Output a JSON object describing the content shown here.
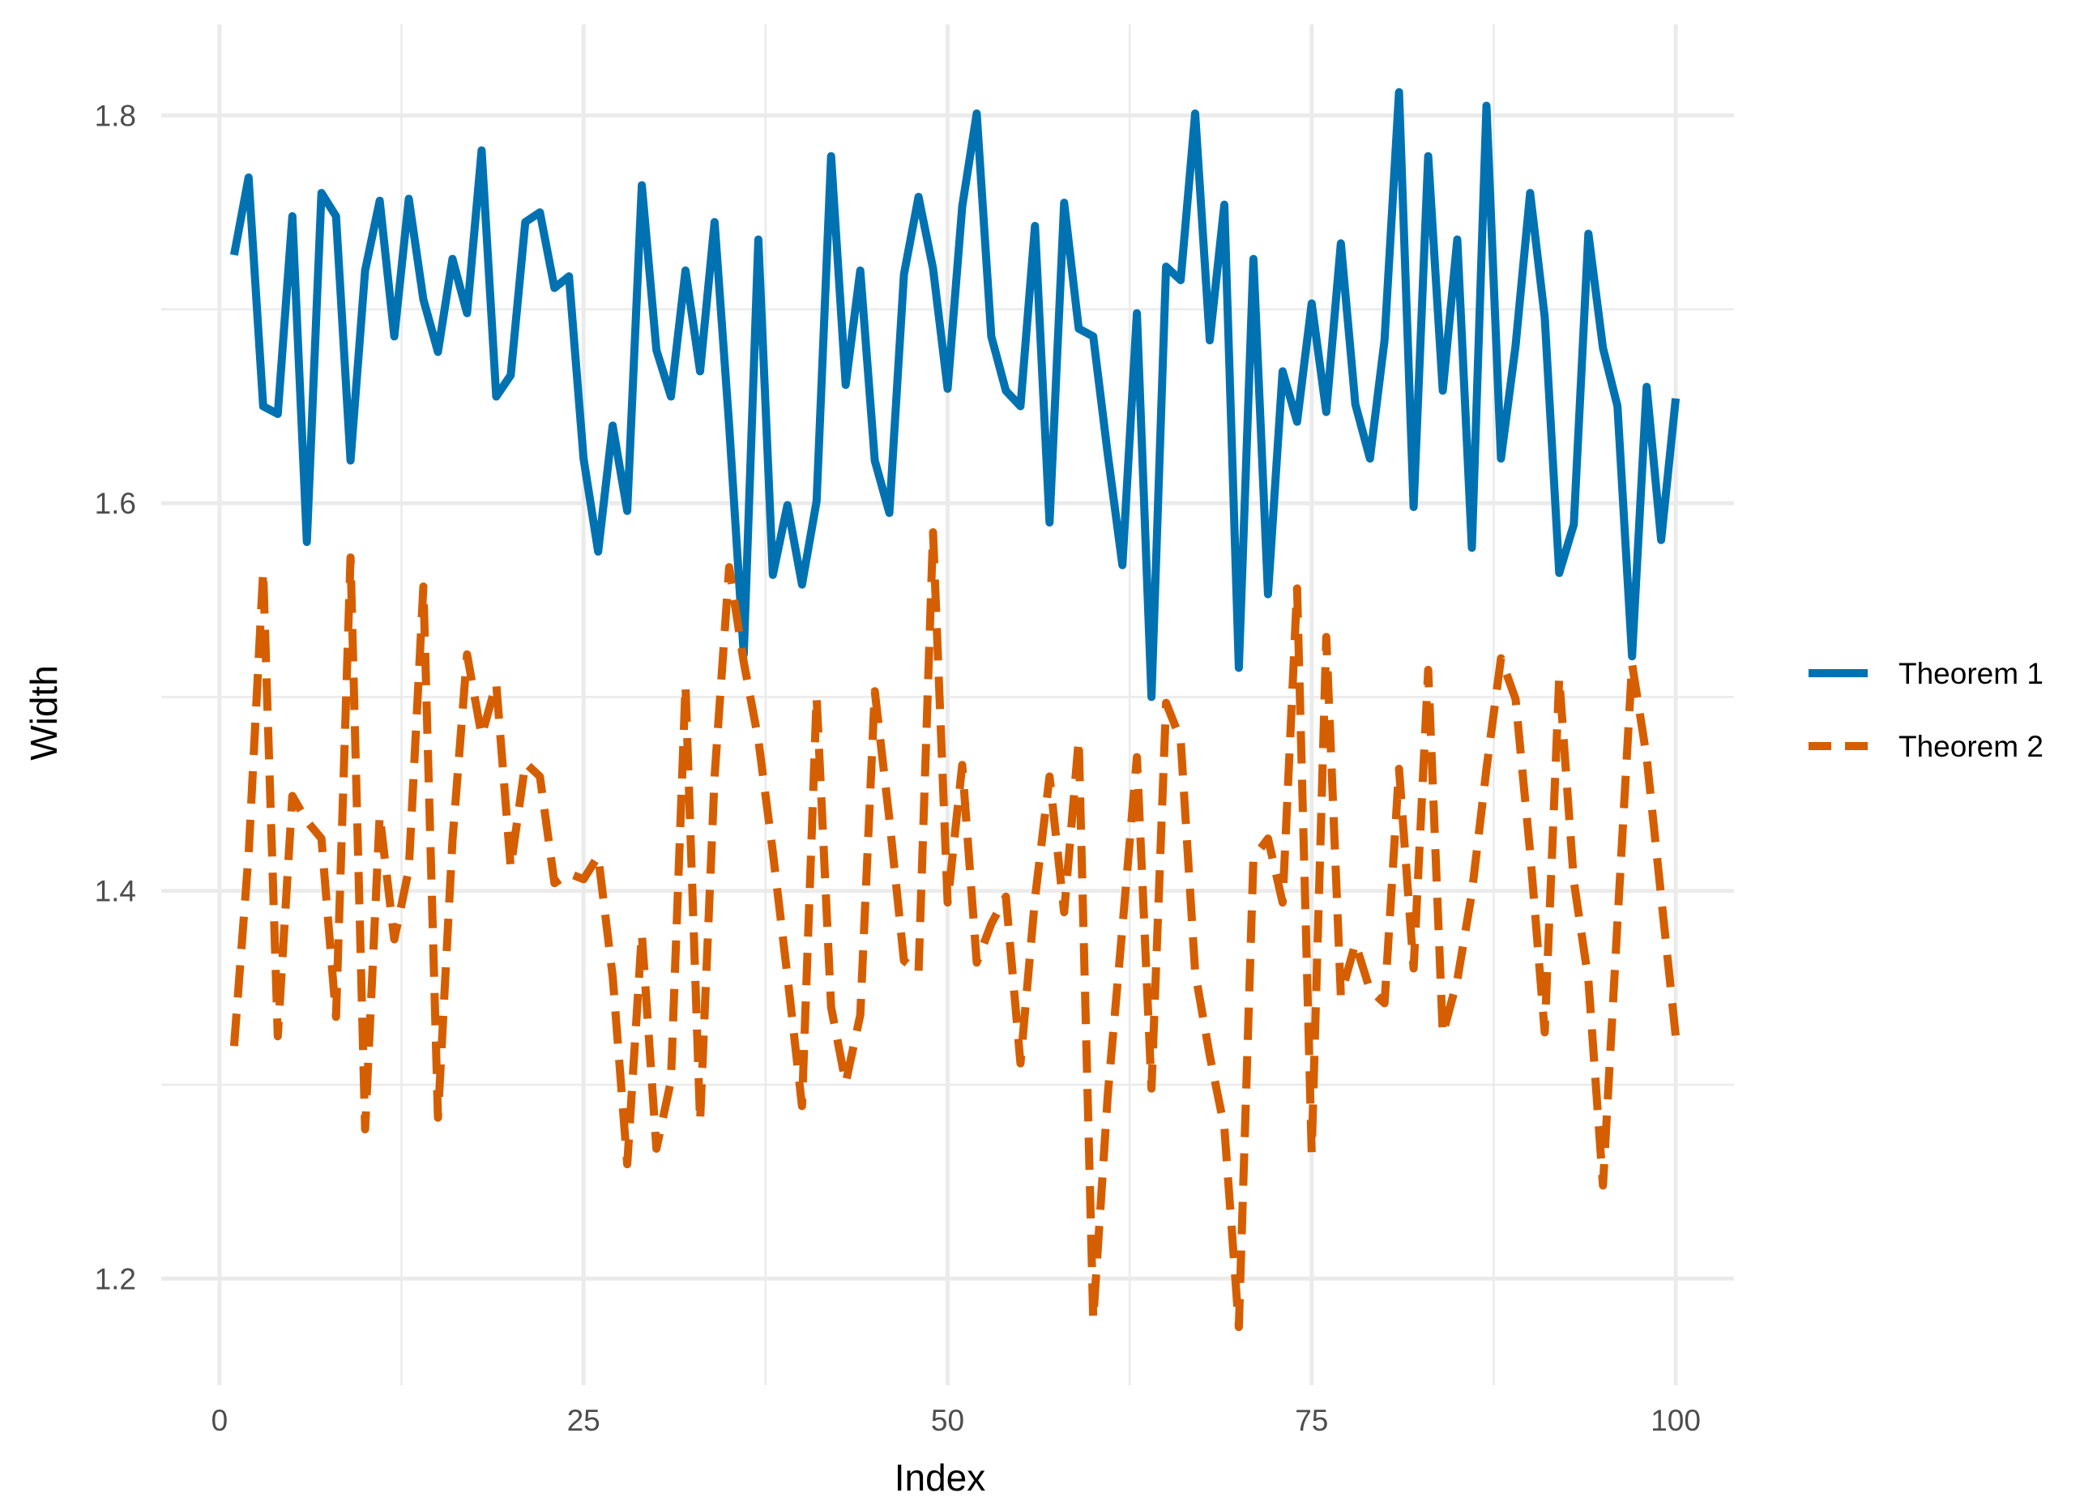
{
  "colors": {
    "theorem1": "#0072B2",
    "theorem2": "#D55E00",
    "grid": "#ebebeb",
    "tick_text": "#4d4d4d"
  },
  "chart_data": {
    "type": "line",
    "title": "",
    "xlabel": "Index",
    "ylabel": "Width",
    "xlim": [
      -4,
      104
    ],
    "ylim": [
      1.145,
      1.847
    ],
    "grid": true,
    "legend_position": "right",
    "x_ticks": [
      0,
      25,
      50,
      75,
      100
    ],
    "x_tick_labels": [
      "0",
      "25",
      "50",
      "75",
      "100"
    ],
    "y_ticks": [
      1.2,
      1.4,
      1.6,
      1.8
    ],
    "y_tick_labels": [
      "1.2",
      "1.4",
      "1.6",
      "1.8"
    ],
    "x": [
      1,
      2,
      3,
      4,
      5,
      6,
      7,
      8,
      9,
      10,
      11,
      12,
      13,
      14,
      15,
      16,
      17,
      18,
      19,
      20,
      21,
      22,
      23,
      24,
      25,
      26,
      27,
      28,
      29,
      30,
      31,
      32,
      33,
      34,
      35,
      36,
      37,
      38,
      39,
      40,
      41,
      42,
      43,
      44,
      45,
      46,
      47,
      48,
      49,
      50,
      51,
      52,
      53,
      54,
      55,
      56,
      57,
      58,
      59,
      60,
      61,
      62,
      63,
      64,
      65,
      66,
      67,
      68,
      69,
      70,
      71,
      72,
      73,
      74,
      75,
      76,
      77,
      78,
      79,
      80,
      81,
      82,
      83,
      84,
      85,
      86,
      87,
      88,
      89,
      90,
      91,
      92,
      93,
      94,
      95,
      96,
      97,
      98,
      99,
      100
    ],
    "series": [
      {
        "name": "Theorem 1",
        "color": "#0072B2",
        "line_style": "solid",
        "values": [
          1.728,
          1.768,
          1.65,
          1.646,
          1.748,
          1.58,
          1.76,
          1.748,
          1.622,
          1.72,
          1.756,
          1.686,
          1.757,
          1.705,
          1.678,
          1.726,
          1.698,
          1.782,
          1.655,
          1.666,
          1.745,
          1.75,
          1.711,
          1.717,
          1.623,
          1.575,
          1.64,
          1.596,
          1.764,
          1.679,
          1.655,
          1.72,
          1.668,
          1.745,
          1.64,
          1.522,
          1.736,
          1.563,
          1.599,
          1.558,
          1.601,
          1.779,
          1.661,
          1.72,
          1.622,
          1.595,
          1.718,
          1.758,
          1.721,
          1.659,
          1.753,
          1.801,
          1.686,
          1.658,
          1.65,
          1.743,
          1.59,
          1.755,
          1.69,
          1.686,
          1.625,
          1.568,
          1.698,
          1.5,
          1.722,
          1.715,
          1.801,
          1.684,
          1.754,
          1.515,
          1.726,
          1.553,
          1.668,
          1.642,
          1.703,
          1.647,
          1.734,
          1.651,
          1.623,
          1.684,
          1.812,
          1.598,
          1.779,
          1.658,
          1.736,
          1.577,
          1.805,
          1.623,
          1.681,
          1.76,
          1.696,
          1.564,
          1.589,
          1.739,
          1.68,
          1.65,
          1.521,
          1.66,
          1.581,
          1.654
        ]
      },
      {
        "name": "Theorem 2",
        "color": "#D55E00",
        "line_style": "dashed",
        "values": [
          1.32,
          1.419,
          1.565,
          1.325,
          1.449,
          1.436,
          1.427,
          1.335,
          1.572,
          1.277,
          1.439,
          1.375,
          1.411,
          1.557,
          1.283,
          1.426,
          1.522,
          1.48,
          1.507,
          1.412,
          1.466,
          1.459,
          1.404,
          1.409,
          1.406,
          1.418,
          1.356,
          1.259,
          1.378,
          1.267,
          1.302,
          1.506,
          1.281,
          1.459,
          1.567,
          1.518,
          1.478,
          1.42,
          1.356,
          1.289,
          1.5,
          1.34,
          1.301,
          1.336,
          1.503,
          1.437,
          1.364,
          1.358,
          1.585,
          1.394,
          1.465,
          1.363,
          1.383,
          1.397,
          1.311,
          1.396,
          1.459,
          1.389,
          1.478,
          1.179,
          1.295,
          1.381,
          1.469,
          1.298,
          1.497,
          1.478,
          1.358,
          1.315,
          1.278,
          1.175,
          1.417,
          1.427,
          1.394,
          1.556,
          1.265,
          1.531,
          1.346,
          1.373,
          1.349,
          1.342,
          1.463,
          1.36,
          1.514,
          1.326,
          1.354,
          1.399,
          1.463,
          1.52,
          1.499,
          1.42,
          1.327,
          1.51,
          1.405,
          1.354,
          1.248,
          1.384,
          1.517,
          1.469,
          1.397,
          1.325
        ]
      }
    ]
  }
}
